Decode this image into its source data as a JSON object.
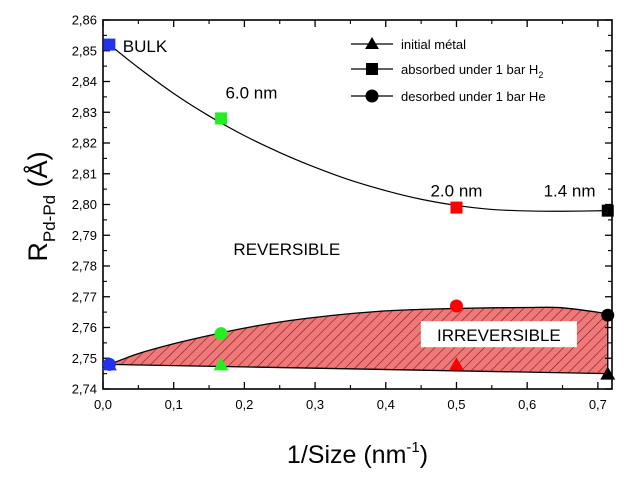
{
  "chart_data": {
    "type": "scatter",
    "xlabel_main": "1/Size (nm",
    "xlabel_sup": "-1",
    "xlabel_end": ")",
    "ylabel_main": "R",
    "ylabel_sub": "Pd-Pd",
    "ylabel_end": " (Å)",
    "xlim": [
      0.0,
      0.72
    ],
    "ylim": [
      2.74,
      2.86
    ],
    "x_ticks": [
      0.0,
      0.1,
      0.2,
      0.3,
      0.4,
      0.5,
      0.6,
      0.7
    ],
    "x_tick_labels": [
      "0,0",
      "0,1",
      "0,2",
      "0,3",
      "0,4",
      "0,5",
      "0,6",
      "0,7"
    ],
    "y_ticks": [
      2.74,
      2.75,
      2.76,
      2.77,
      2.78,
      2.79,
      2.8,
      2.81,
      2.82,
      2.83,
      2.84,
      2.85,
      2.86
    ],
    "y_tick_labels": [
      "2,74",
      "2,75",
      "2,76",
      "2,77",
      "2,78",
      "2,79",
      "2,80",
      "2,81",
      "2,82",
      "2,83",
      "2,84",
      "2,85",
      "2,86"
    ],
    "legend": {
      "placement": "top-right",
      "entries": [
        {
          "label": "initial métal",
          "marker": "triangle"
        },
        {
          "label_main": "absorbed under 1 bar H",
          "label_sub": "2",
          "marker": "square"
        },
        {
          "label": "desorbed under 1 bar He",
          "marker": "circle"
        }
      ]
    },
    "series": [
      {
        "name": "initial métal",
        "marker": "triangle",
        "points": [
          {
            "x": 0.009,
            "y": 2.748,
            "color": "#2233ee"
          },
          {
            "x": 0.167,
            "y": 2.748,
            "color": "#22ee22"
          },
          {
            "x": 0.5,
            "y": 2.748,
            "color": "#ff0000"
          },
          {
            "x": 0.714,
            "y": 2.745,
            "color": "#000000"
          }
        ]
      },
      {
        "name": "absorbed under 1 bar H2",
        "marker": "square",
        "points": [
          {
            "x": 0.009,
            "y": 2.852,
            "color": "#2233ee"
          },
          {
            "x": 0.167,
            "y": 2.828,
            "color": "#22ee22"
          },
          {
            "x": 0.5,
            "y": 2.799,
            "color": "#ff0000"
          },
          {
            "x": 0.714,
            "y": 2.798,
            "color": "#000000"
          }
        ]
      },
      {
        "name": "desorbed under 1 bar He",
        "marker": "circle",
        "points": [
          {
            "x": 0.009,
            "y": 2.748,
            "color": "#2233ee"
          },
          {
            "x": 0.167,
            "y": 2.758,
            "color": "#22ee22"
          },
          {
            "x": 0.5,
            "y": 2.767,
            "color": "#ff0000"
          },
          {
            "x": 0.714,
            "y": 2.764,
            "color": "#000000"
          }
        ]
      }
    ],
    "fit_curve": {
      "x": [
        0.009,
        0.05,
        0.1,
        0.15,
        0.2,
        0.25,
        0.3,
        0.35,
        0.4,
        0.45,
        0.5,
        0.55,
        0.6,
        0.65,
        0.714
      ],
      "y": [
        2.852,
        2.8445,
        2.8361,
        2.8288,
        2.8224,
        2.8169,
        2.8121,
        2.8079,
        2.8045,
        2.8017,
        2.7997,
        2.7984,
        2.7979,
        2.7978,
        2.798
      ]
    },
    "band_upper": {
      "x": [
        0.009,
        0.05,
        0.1,
        0.15,
        0.2,
        0.25,
        0.3,
        0.35,
        0.4,
        0.45,
        0.5,
        0.55,
        0.6,
        0.65,
        0.714
      ],
      "y": [
        2.748,
        2.7515,
        2.7547,
        2.7574,
        2.7598,
        2.7618,
        2.7633,
        2.7645,
        2.7654,
        2.7659,
        2.7662,
        2.7664,
        2.7665,
        2.7664,
        2.7645
      ]
    },
    "band_lower": {
      "x": [
        0.009,
        0.714
      ],
      "y": [
        2.748,
        2.745
      ]
    },
    "annotations": [
      {
        "text": "BULK",
        "x": 0.028,
        "y": 2.8515
      },
      {
        "text": "6.0 nm",
        "x": 0.21,
        "y": 2.8365
      },
      {
        "text": "2.0 nm",
        "x": 0.5,
        "y": 2.8045
      },
      {
        "text": "1.4 nm",
        "x": 0.66,
        "y": 2.8045
      },
      {
        "text": "REVERSIBLE",
        "x": 0.26,
        "y": 2.7855
      },
      {
        "text": "IRREVERSIBLE",
        "x": 0.56,
        "y": 2.7575
      }
    ]
  }
}
